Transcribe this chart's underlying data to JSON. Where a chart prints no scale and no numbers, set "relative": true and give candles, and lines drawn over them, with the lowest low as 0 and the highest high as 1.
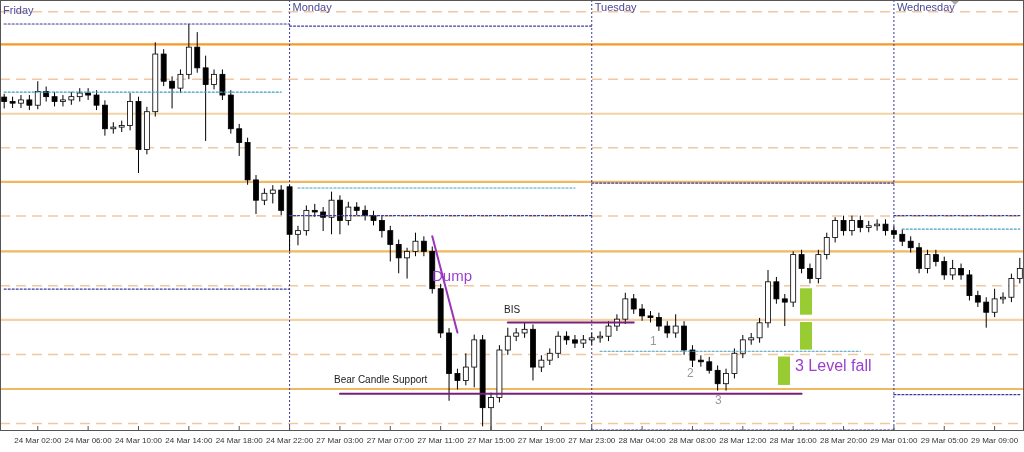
{
  "chart_data": {
    "type": "candlestick",
    "relative": true,
    "color": "#000000",
    "tick_labels": "x",
    "grid": false,
    "categories": [
      null,
      null,
      null,
      null,
      "24 Mar 02:00",
      null,
      null,
      null,
      null,
      null,
      "24 Mar 06:00",
      null,
      null,
      null,
      null,
      null,
      "24 Mar 10:00",
      null,
      null,
      null,
      null,
      null,
      "24 Mar 14:00",
      null,
      null,
      null,
      null,
      null,
      "24 Mar 18:00",
      null,
      null,
      null,
      null,
      null,
      "24 Mar 22:00",
      null,
      null,
      null,
      null,
      null,
      "27 Mar 03:00",
      null,
      null,
      null,
      null,
      null,
      "27 Mar 07:00",
      null,
      null,
      null,
      null,
      null,
      "27 Mar 11:00",
      null,
      null,
      null,
      null,
      null,
      "27 Mar 15:00",
      null,
      null,
      null,
      null,
      null,
      "27 Mar 19:00",
      null,
      null,
      null,
      null,
      null,
      "27 Mar 23:00",
      null,
      null,
      null,
      null,
      null,
      "28 Mar 04:00",
      null,
      null,
      null,
      null,
      null,
      "28 Mar 08:00",
      null,
      null,
      null,
      null,
      null,
      "28 Mar 12:00",
      null,
      null,
      null,
      null,
      null,
      "28 Mar 16:00",
      null,
      null,
      null,
      null,
      null,
      "28 Mar 20:00",
      null,
      null,
      null,
      null,
      null,
      "29 Mar 01:00",
      null,
      null,
      null,
      null,
      null,
      "29 Mar 05:00",
      null,
      null,
      null,
      null,
      null,
      "29 Mar 09:00",
      null,
      null,
      null
    ],
    "ohlc": [
      [
        0.82,
        0.828,
        0.792,
        0.809
      ],
      [
        0.809,
        0.821,
        0.793,
        0.805
      ],
      [
        0.805,
        0.825,
        0.793,
        0.813
      ],
      [
        0.813,
        0.825,
        0.788,
        0.8
      ],
      [
        0.8,
        0.859,
        0.79,
        0.834
      ],
      [
        0.834,
        0.846,
        0.809,
        0.821
      ],
      [
        0.821,
        0.833,
        0.797,
        0.809
      ],
      [
        0.809,
        0.825,
        0.797,
        0.813
      ],
      [
        0.813,
        0.833,
        0.801,
        0.821
      ],
      [
        0.821,
        0.842,
        0.809,
        0.83
      ],
      [
        0.83,
        0.842,
        0.813,
        0.825
      ],
      [
        0.825,
        0.837,
        0.788,
        0.8
      ],
      [
        0.8,
        0.812,
        0.725,
        0.742
      ],
      [
        0.742,
        0.758,
        0.73,
        0.746
      ],
      [
        0.746,
        0.762,
        0.734,
        0.75
      ],
      [
        0.75,
        0.83,
        0.738,
        0.809
      ],
      [
        0.809,
        0.821,
        0.633,
        0.691
      ],
      [
        0.691,
        0.796,
        0.679,
        0.784
      ],
      [
        0.784,
        0.955,
        0.772,
        0.926
      ],
      [
        0.926,
        0.938,
        0.847,
        0.859
      ],
      [
        0.859,
        0.871,
        0.792,
        0.842
      ],
      [
        0.842,
        0.888,
        0.83,
        0.876
      ],
      [
        0.876,
        1.0,
        0.864,
        0.943
      ],
      [
        0.943,
        0.98,
        0.88,
        0.892
      ],
      [
        0.892,
        0.922,
        0.712,
        0.851
      ],
      [
        0.851,
        0.888,
        0.839,
        0.876
      ],
      [
        0.876,
        0.888,
        0.813,
        0.825
      ],
      [
        0.825,
        0.837,
        0.73,
        0.742
      ],
      [
        0.742,
        0.754,
        0.675,
        0.708
      ],
      [
        0.708,
        0.72,
        0.604,
        0.616
      ],
      [
        0.616,
        0.628,
        0.532,
        0.566
      ],
      [
        0.566,
        0.595,
        0.554,
        0.583
      ],
      [
        0.583,
        0.603,
        0.558,
        0.591
      ],
      [
        0.591,
        0.603,
        0.529,
        0.541
      ],
      [
        0.599,
        0.603,
        0.44,
        0.482
      ],
      [
        0.482,
        0.503,
        0.455,
        0.491
      ],
      [
        0.491,
        0.553,
        0.479,
        0.541
      ],
      [
        0.541,
        0.557,
        0.525,
        0.537
      ],
      [
        0.537,
        0.549,
        0.49,
        0.524
      ],
      [
        0.524,
        0.587,
        0.482,
        0.566
      ],
      [
        0.566,
        0.578,
        0.482,
        0.516
      ],
      [
        0.516,
        0.562,
        0.504,
        0.549
      ],
      [
        0.549,
        0.561,
        0.529,
        0.541
      ],
      [
        0.541,
        0.553,
        0.516,
        0.528
      ],
      [
        0.528,
        0.54,
        0.504,
        0.516
      ],
      [
        0.516,
        0.528,
        0.474,
        0.491
      ],
      [
        0.491,
        0.503,
        0.415,
        0.457
      ],
      [
        0.457,
        0.469,
        0.386,
        0.424
      ],
      [
        0.424,
        0.449,
        0.373,
        0.44
      ],
      [
        0.44,
        0.486,
        0.428,
        0.465
      ],
      [
        0.465,
        0.477,
        0.428,
        0.44
      ],
      [
        0.44,
        0.452,
        0.336,
        0.348
      ],
      [
        0.348,
        0.36,
        0.227,
        0.239
      ],
      [
        0.239,
        0.251,
        0.072,
        0.139
      ],
      [
        0.139,
        0.151,
        0.1,
        0.122
      ],
      [
        0.122,
        0.189,
        0.11,
        0.155
      ],
      [
        0.155,
        0.235,
        0.105,
        0.222
      ],
      [
        0.222,
        0.234,
        0.009,
        0.055
      ],
      [
        0.055,
        0.092,
        0,
        0.08
      ],
      [
        0.08,
        0.209,
        0.068,
        0.197
      ],
      [
        0.197,
        0.252,
        0.185,
        0.231
      ],
      [
        0.231,
        0.251,
        0.219,
        0.239
      ],
      [
        0.239,
        0.264,
        0.227,
        0.248
      ],
      [
        0.248,
        0.26,
        0.122,
        0.155
      ],
      [
        0.155,
        0.184,
        0.143,
        0.172
      ],
      [
        0.172,
        0.201,
        0.16,
        0.189
      ],
      [
        0.189,
        0.243,
        0.177,
        0.231
      ],
      [
        0.231,
        0.243,
        0.21,
        0.222
      ],
      [
        0.222,
        0.234,
        0.202,
        0.214
      ],
      [
        0.214,
        0.234,
        0.202,
        0.222
      ],
      [
        0.222,
        0.239,
        0.21,
        0.227
      ],
      [
        0.227,
        0.243,
        0.215,
        0.231
      ],
      [
        0.231,
        0.268,
        0.219,
        0.256
      ],
      [
        0.256,
        0.285,
        0.244,
        0.273
      ],
      [
        0.273,
        0.338,
        0.261,
        0.323
      ],
      [
        0.323,
        0.335,
        0.286,
        0.298
      ],
      [
        0.298,
        0.31,
        0.269,
        0.281
      ],
      [
        0.281,
        0.293,
        0.265,
        0.277
      ],
      [
        0.277,
        0.289,
        0.244,
        0.256
      ],
      [
        0.256,
        0.268,
        0.227,
        0.239
      ],
      [
        0.239,
        0.285,
        0.227,
        0.256
      ],
      [
        0.256,
        0.268,
        0.185,
        0.197
      ],
      [
        0.197,
        0.209,
        0.155,
        0.172
      ],
      [
        0.172,
        0.184,
        0.156,
        0.168
      ],
      [
        0.168,
        0.18,
        0.139,
        0.147
      ],
      [
        0.147,
        0.159,
        0.097,
        0.114
      ],
      [
        0.114,
        0.151,
        0.097,
        0.139
      ],
      [
        0.139,
        0.201,
        0.127,
        0.189
      ],
      [
        0.189,
        0.234,
        0.177,
        0.222
      ],
      [
        0.222,
        0.239,
        0.21,
        0.227
      ],
      [
        0.227,
        0.276,
        0.215,
        0.264
      ],
      [
        0.264,
        0.394,
        0.252,
        0.365
      ],
      [
        0.365,
        0.377,
        0.311,
        0.323
      ],
      [
        0.323,
        0.335,
        0.256,
        0.315
      ],
      [
        0.315,
        0.44,
        0.303,
        0.432
      ],
      [
        0.432,
        0.444,
        0.386,
        0.398
      ],
      [
        0.398,
        0.41,
        0.361,
        0.373
      ],
      [
        0.373,
        0.444,
        0.361,
        0.432
      ],
      [
        0.432,
        0.486,
        0.42,
        0.474
      ],
      [
        0.474,
        0.524,
        0.462,
        0.516
      ],
      [
        0.516,
        0.528,
        0.479,
        0.491
      ],
      [
        0.491,
        0.528,
        0.479,
        0.516
      ],
      [
        0.516,
        0.528,
        0.487,
        0.499
      ],
      [
        0.499,
        0.515,
        0.487,
        0.503
      ],
      [
        0.503,
        0.519,
        0.491,
        0.507
      ],
      [
        0.507,
        0.519,
        0.479,
        0.491
      ],
      [
        0.491,
        0.503,
        0.47,
        0.482
      ],
      [
        0.482,
        0.494,
        0.453,
        0.465
      ],
      [
        0.465,
        0.477,
        0.437,
        0.449
      ],
      [
        0.449,
        0.461,
        0.386,
        0.398
      ],
      [
        0.398,
        0.444,
        0.386,
        0.432
      ],
      [
        0.432,
        0.444,
        0.403,
        0.415
      ],
      [
        0.415,
        0.427,
        0.37,
        0.382
      ],
      [
        0.382,
        0.419,
        0.37,
        0.398
      ],
      [
        0.398,
        0.41,
        0.37,
        0.382
      ],
      [
        0.382,
        0.394,
        0.319,
        0.331
      ],
      [
        0.331,
        0.343,
        0.303,
        0.315
      ],
      [
        0.315,
        0.327,
        0.252,
        0.29
      ],
      [
        0.29,
        0.348,
        0.278,
        0.323
      ],
      [
        0.323,
        0.339,
        0.311,
        0.327
      ],
      [
        0.327,
        0.385,
        0.315,
        0.373
      ],
      [
        0.373,
        0.424,
        0.361,
        0.398
      ]
    ],
    "series": [
      {
        "type": "line",
        "color": "#3a3a9e",
        "line_style": "dotted",
        "values": [
          1.0,
          1.0,
          1.0,
          1.0,
          1.0,
          1.0,
          1.0,
          1.0,
          1.0,
          1.0,
          1.0,
          1.0,
          1.0,
          1.0,
          1.0,
          1.0,
          1.0,
          1.0,
          1.0,
          1.0,
          1.0,
          1.0,
          1.0,
          1.0,
          1.0,
          1.0,
          1.0,
          1.0,
          1.0,
          1.0,
          1.0,
          1.0,
          1.0,
          1.0,
          1.0,
          null,
          null,
          null,
          null,
          null,
          null,
          null,
          null,
          null,
          null,
          null,
          null,
          null,
          null,
          null,
          null,
          null,
          null,
          null,
          null,
          null,
          null,
          null,
          null,
          null,
          null,
          null,
          null,
          null,
          null,
          null,
          null,
          null,
          null,
          null,
          0.608,
          0.608,
          0.608,
          0.608,
          0.608,
          0.608,
          0.608,
          0.608,
          0.608,
          0.608,
          0.608,
          0.608,
          0.608,
          0.608,
          0.608,
          0.608,
          0.608,
          0.608,
          0.608,
          0.608,
          0.608,
          0.608,
          0.608,
          0.608,
          0.608,
          0.608,
          0.608,
          0.608,
          0.608,
          0.608,
          0.608,
          0.608,
          0.608,
          0.608,
          0.608,
          0.608,
          0.608,
          null,
          null,
          null,
          null,
          null,
          null,
          null,
          null,
          null,
          null,
          null,
          null,
          null,
          null,
          null
        ]
      },
      {
        "type": "line",
        "color": "#3a3a9e",
        "line_style": "dotted",
        "values": [
          null,
          null,
          null,
          null,
          null,
          null,
          null,
          null,
          null,
          null,
          null,
          null,
          null,
          null,
          null,
          null,
          null,
          null,
          null,
          null,
          null,
          null,
          null,
          null,
          null,
          null,
          null,
          null,
          null,
          null,
          null,
          null,
          null,
          null,
          0.995,
          0.995,
          0.995,
          0.995,
          0.995,
          0.995,
          0.995,
          0.995,
          0.995,
          0.995,
          0.995,
          0.995,
          0.995,
          0.995,
          0.995,
          0.995,
          0.995,
          0.995,
          0.995,
          0.995,
          0.995,
          0.995,
          0.995,
          0.995,
          0.995,
          0.995,
          0.995,
          0.995,
          0.995,
          0.995,
          0.995,
          0.995,
          0.995,
          0.995,
          0.995,
          0.995,
          0.995,
          null,
          null,
          null,
          null,
          null,
          null,
          null,
          null,
          null,
          null,
          null,
          null,
          null,
          null,
          null,
          null,
          null,
          null,
          null,
          null,
          null,
          null,
          null,
          null,
          null,
          null,
          null,
          null,
          null,
          null,
          null,
          null,
          null,
          null,
          null,
          0.528,
          0.528,
          0.528,
          0.528,
          0.528,
          0.528,
          0.528,
          0.528,
          0.528,
          0.528,
          0.528,
          0.528,
          0.528,
          0.528,
          0.528,
          0.528
        ]
      },
      {
        "type": "line",
        "color": "#3a3a9e",
        "line_style": "dotted",
        "values": [
          0.347,
          0.347,
          0.347,
          0.347,
          0.347,
          0.347,
          0.347,
          0.347,
          0.347,
          0.347,
          0.347,
          0.347,
          0.347,
          0.347,
          0.347,
          0.347,
          0.347,
          0.347,
          0.347,
          0.347,
          0.347,
          0.347,
          0.347,
          0.347,
          0.347,
          0.347,
          0.347,
          0.347,
          0.347,
          0.347,
          0.347,
          0.347,
          0.347,
          0.347,
          0.347,
          null,
          null,
          null,
          null,
          null,
          null,
          null,
          null,
          null,
          null,
          null,
          null,
          null,
          null,
          null,
          null,
          null,
          null,
          null,
          null,
          null,
          null,
          null,
          null,
          null,
          null,
          null,
          null,
          null,
          null,
          null,
          null,
          null,
          null,
          null,
          0.0,
          0.0,
          0.0,
          0.0,
          0.0,
          0.0,
          0.0,
          0.0,
          0.0,
          0.0,
          0.0,
          0.0,
          0.0,
          0.0,
          0.0,
          0.0,
          0.0,
          0.0,
          0.0,
          0.0,
          0.0,
          0.0,
          0.0,
          0.0,
          0.0,
          0.0,
          0.0,
          0.0,
          0.0,
          0.0,
          0.0,
          0.0,
          0.0,
          0.0,
          0.0,
          0.0,
          0.0,
          null,
          null,
          null,
          null,
          null,
          null,
          null,
          null,
          null,
          null,
          null,
          null,
          null,
          null,
          null
        ]
      },
      {
        "type": "line",
        "color": "#3a3a9e",
        "line_style": "dotted",
        "values": [
          null,
          null,
          null,
          null,
          null,
          null,
          null,
          null,
          null,
          null,
          null,
          null,
          null,
          null,
          null,
          null,
          null,
          null,
          null,
          null,
          null,
          null,
          null,
          null,
          null,
          null,
          null,
          null,
          null,
          null,
          null,
          null,
          null,
          null,
          0.528,
          0.528,
          0.528,
          0.528,
          0.528,
          0.528,
          0.528,
          0.528,
          0.528,
          0.528,
          0.528,
          0.528,
          0.528,
          0.528,
          0.528,
          0.528,
          0.528,
          0.528,
          0.528,
          0.528,
          0.528,
          0.528,
          0.528,
          0.528,
          0.528,
          0.528,
          0.528,
          0.528,
          0.528,
          0.528,
          0.528,
          0.528,
          0.528,
          0.528,
          0.528,
          0.528,
          0.528,
          null,
          null,
          null,
          null,
          null,
          null,
          null,
          null,
          null,
          null,
          null,
          null,
          null,
          null,
          null,
          null,
          null,
          null,
          null,
          null,
          null,
          null,
          null,
          null,
          null,
          null,
          null,
          null,
          null,
          null,
          null,
          null,
          null,
          null,
          null,
          0.087,
          0.087,
          0.087,
          0.087,
          0.087,
          0.087,
          0.087,
          0.087,
          0.087,
          0.087,
          0.087,
          0.087,
          0.087,
          0.087,
          0.087,
          0.087
        ]
      },
      {
        "type": "line",
        "color": "#3f9fc4",
        "line_style": "dotted",
        "values": [
          0.832,
          0.832,
          0.832,
          0.832,
          0.832,
          0.832,
          0.832,
          0.832,
          0.832,
          0.832,
          0.832,
          0.832,
          0.832,
          0.832,
          0.832,
          0.832,
          0.832,
          0.832,
          0.832,
          0.832,
          0.832,
          0.832,
          0.832,
          0.832,
          0.832,
          0.832,
          0.832,
          0.832,
          0.832,
          0.832,
          0.832,
          0.832,
          0.832,
          0.832,
          null,
          0.596,
          0.596,
          0.596,
          0.596,
          0.596,
          0.596,
          0.596,
          0.596,
          0.596,
          0.596,
          0.596,
          0.596,
          0.596,
          0.596,
          0.596,
          0.596,
          0.596,
          0.596,
          0.596,
          0.596,
          0.596,
          0.596,
          0.596,
          0.596,
          0.596,
          0.596,
          0.596,
          0.596,
          0.596,
          0.596,
          0.596,
          0.596,
          0.596,
          0.596,
          null,
          null,
          0.194,
          0.194,
          0.194,
          0.194,
          0.194,
          0.194,
          0.194,
          0.194,
          0.194,
          0.194,
          0.194,
          0.194,
          0.194,
          0.194,
          0.194,
          0.194,
          0.194,
          0.194,
          0.194,
          0.194,
          0.194,
          0.194,
          0.194,
          0.194,
          0.194,
          0.194,
          0.194,
          0.194,
          0.194,
          0.194,
          0.194,
          0.194,
          null,
          null,
          null,
          null,
          0.495,
          0.495,
          0.495,
          0.495,
          0.495,
          0.495,
          0.495,
          0.495,
          0.495,
          0.495,
          0.495,
          0.495,
          0.495,
          0.495,
          0.495
        ]
      },
      {
        "type": "line",
        "color": "#7a1f7a",
        "line_style": "solid",
        "values": [
          null,
          null,
          null,
          null,
          null,
          null,
          null,
          null,
          null,
          null,
          null,
          null,
          null,
          null,
          null,
          null,
          null,
          null,
          null,
          null,
          null,
          null,
          null,
          null,
          null,
          null,
          null,
          null,
          null,
          null,
          null,
          null,
          null,
          null,
          null,
          null,
          null,
          null,
          null,
          null,
          0.089,
          0.089,
          0.089,
          0.089,
          0.089,
          0.089,
          0.089,
          0.089,
          0.089,
          0.089,
          0.089,
          0.089,
          0.089,
          0.089,
          0.089,
          0.089,
          0.089,
          0.089,
          0.089,
          0.089,
          0.089,
          0.089,
          0.089,
          0.089,
          0.089,
          0.089,
          0.089,
          0.089,
          0.089,
          0.089,
          0.089,
          0.089,
          0.089,
          0.089,
          0.089,
          0.089,
          0.089,
          0.089,
          0.089,
          0.089,
          0.089,
          0.089,
          0.089,
          0.089,
          0.089,
          0.089,
          0.089,
          0.089,
          0.089,
          0.089,
          0.089,
          0.089,
          0.089,
          0.089,
          0.089,
          0.089,
          null,
          null,
          null,
          null,
          null,
          null,
          null,
          null,
          null,
          null,
          null,
          null,
          null,
          null,
          null,
          null,
          null,
          null,
          null,
          null,
          null,
          null,
          null,
          null,
          null,
          null
        ]
      },
      {
        "type": "line",
        "color": "#7a1f7a",
        "line_style": "solid",
        "values": [
          null,
          null,
          null,
          null,
          null,
          null,
          null,
          null,
          null,
          null,
          null,
          null,
          null,
          null,
          null,
          null,
          null,
          null,
          null,
          null,
          null,
          null,
          null,
          null,
          null,
          null,
          null,
          null,
          null,
          null,
          null,
          null,
          null,
          null,
          null,
          null,
          null,
          null,
          null,
          null,
          null,
          null,
          null,
          null,
          null,
          null,
          null,
          null,
          null,
          null,
          null,
          null,
          null,
          null,
          null,
          null,
          null,
          null,
          null,
          null,
          0.265,
          0.265,
          0.265,
          0.265,
          0.265,
          0.265,
          0.265,
          0.265,
          0.265,
          0.265,
          0.265,
          0.265,
          0.265,
          0.265,
          0.265,
          0.265,
          null,
          null,
          null,
          null,
          null,
          null,
          null,
          null,
          null,
          null,
          null,
          null,
          null,
          null,
          null,
          null,
          null,
          null,
          null,
          null,
          null,
          null,
          null,
          null,
          null,
          null,
          null,
          null,
          null,
          null,
          null,
          null,
          null,
          null,
          null,
          null,
          null,
          null,
          null,
          null,
          null,
          null,
          null,
          null,
          null,
          null
        ]
      },
      {
        "type": "line",
        "color": "#9933bb",
        "line_style": "solid",
        "values": [
          null,
          null,
          null,
          null,
          null,
          null,
          null,
          null,
          null,
          null,
          null,
          null,
          null,
          null,
          null,
          null,
          null,
          null,
          null,
          null,
          null,
          null,
          null,
          null,
          null,
          null,
          null,
          null,
          null,
          null,
          null,
          null,
          null,
          null,
          null,
          null,
          null,
          null,
          null,
          null,
          null,
          null,
          null,
          null,
          null,
          null,
          null,
          null,
          null,
          null,
          null,
          0.477,
          0.398,
          0.319,
          0.24,
          null,
          null,
          null,
          null,
          null,
          null,
          null,
          null,
          null,
          null,
          null,
          null,
          null,
          null,
          null,
          null,
          null,
          null,
          null,
          null,
          null,
          null,
          null,
          null,
          null,
          null,
          null,
          null,
          null,
          null,
          null,
          null,
          null,
          null,
          null,
          null,
          null,
          null,
          null,
          null,
          null,
          null,
          null,
          null,
          null,
          null,
          null,
          null,
          null,
          null,
          null,
          null,
          null,
          null,
          null,
          null,
          null,
          null,
          null,
          null,
          null,
          null,
          null,
          null,
          null,
          null,
          null
        ]
      }
    ],
    "ref_lines": [
      {
        "axis": "y",
        "value": 1.03,
        "color": "#f2c8a0",
        "line_style": "dashed"
      },
      {
        "axis": "y",
        "value": 0.95,
        "color": "#f59a24",
        "line_style": "solid"
      },
      {
        "axis": "y",
        "value": 0.864,
        "color": "#f2c8a0",
        "line_style": "dashed"
      },
      {
        "axis": "y",
        "value": 0.779,
        "color": "#f3d3a3",
        "line_style": "solid"
      },
      {
        "axis": "y",
        "value": 0.695,
        "color": "#f2c8a0",
        "line_style": "dashed"
      },
      {
        "axis": "y",
        "value": 0.611,
        "color": "#f0b860",
        "line_style": "solid"
      },
      {
        "axis": "y",
        "value": 0.527,
        "color": "#f2c8a0",
        "line_style": "dashed"
      },
      {
        "axis": "y",
        "value": 0.44,
        "color": "#f0b860",
        "line_style": "solid"
      },
      {
        "axis": "y",
        "value": 0.355,
        "color": "#f2c8a0",
        "line_style": "dashed"
      },
      {
        "axis": "y",
        "value": 0.271,
        "color": "#f3d3a3",
        "line_style": "solid"
      },
      {
        "axis": "y",
        "value": 0.186,
        "color": "#f2c8a0",
        "line_style": "dashed"
      },
      {
        "axis": "y",
        "value": 0.101,
        "color": "#f0b860",
        "line_style": "solid"
      },
      {
        "axis": "y",
        "value": 0.016,
        "color": "#f2c8a0",
        "line_style": "dashed"
      },
      {
        "axis": "x",
        "value": "24 Mar 22:00",
        "label": "Monday",
        "color": "#3a3a9e",
        "line_style": "dotted"
      },
      {
        "axis": "x",
        "value": "27 Mar 23:00",
        "label": "Tuesday",
        "color": "#3a3a9e",
        "line_style": "dotted"
      },
      {
        "axis": "x",
        "value": "29 Mar 01:00",
        "label": "Wednesday",
        "color": "#3a3a9e",
        "line_style": "dotted"
      }
    ],
    "annotations": [
      "Dump",
      "BIS",
      "Bear Candle Support",
      "1",
      "2",
      "3",
      "3 Level fall",
      "Friday"
    ]
  }
}
